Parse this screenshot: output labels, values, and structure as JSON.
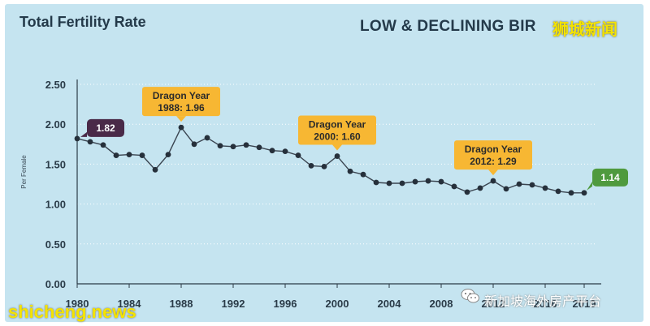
{
  "title": "Total Fertility Rate",
  "subtitle": "LOW & DECLINING BIR",
  "watermarks": {
    "top_right": "狮城新闻",
    "bottom_left": "shicheng.news",
    "bottom_right": "新加坡海外房产平台"
  },
  "colors": {
    "background": "#c5e4f0",
    "line": "#3a4450",
    "point": "#26303b",
    "annotation": "#f7b733",
    "start_badge": "#4a2a48",
    "end_badge": "#4f9a3e",
    "text": "#243a4a"
  },
  "chart_data": {
    "type": "line",
    "title": "Total Fertility Rate",
    "xlabel": "",
    "ylabel": "Per Female",
    "ylim": [
      0,
      2.5
    ],
    "yticks": [
      "0.00",
      "0.50",
      "1.00",
      "1.50",
      "2.00",
      "2.50"
    ],
    "xticks": [
      "1980",
      "1984",
      "1988",
      "1992",
      "1996",
      "2000",
      "2004",
      "2008",
      "2012",
      "2016",
      "2019"
    ],
    "grid": true,
    "series": [
      {
        "x": [
          1980,
          1981,
          1982,
          1983,
          1984,
          1985,
          1986,
          1987,
          1988,
          1989,
          1990,
          1991,
          1992,
          1993,
          1994,
          1995,
          1996,
          1997,
          1998,
          1999,
          2000,
          2001,
          2002,
          2003,
          2004,
          2005,
          2006,
          2007,
          2008,
          2009,
          2010,
          2011,
          2012,
          2013,
          2014,
          2015,
          2016,
          2017,
          2018,
          2019
        ],
        "y": [
          1.82,
          1.78,
          1.74,
          1.61,
          1.62,
          1.61,
          1.43,
          1.62,
          1.96,
          1.75,
          1.83,
          1.73,
          1.72,
          1.74,
          1.71,
          1.67,
          1.66,
          1.61,
          1.48,
          1.47,
          1.6,
          1.41,
          1.37,
          1.27,
          1.26,
          1.26,
          1.28,
          1.29,
          1.28,
          1.22,
          1.15,
          1.2,
          1.29,
          1.19,
          1.25,
          1.24,
          1.2,
          1.16,
          1.14,
          1.14
        ]
      }
    ],
    "annotations": [
      {
        "line1": "Dragon Year",
        "line2": "1988: 1.96",
        "x": 1988,
        "y": 1.96
      },
      {
        "line1": "Dragon Year",
        "line2": "2000: 1.60",
        "x": 2000,
        "y": 1.6
      },
      {
        "line1": "Dragon Year",
        "line2": "2012: 1.29",
        "x": 2012,
        "y": 1.29
      }
    ],
    "badges": [
      {
        "label": "1.82",
        "x": 1980,
        "y": 1.82
      },
      {
        "label": "1.14",
        "x": 2019,
        "y": 1.14
      }
    ]
  }
}
